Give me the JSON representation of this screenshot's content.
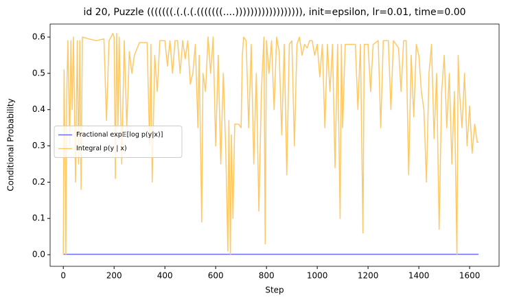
{
  "chart_data": {
    "type": "line",
    "title": "id 20, Puzzle (((((((.(.(.(.(((((((....)))))))))))))))))), init=epsilon, lr=0.01, time=0.00",
    "xlabel": "Step",
    "ylabel": "Conditional Probability",
    "xlim": [
      -52,
      1716
    ],
    "ylim": [
      -0.032,
      0.636
    ],
    "xticks": [
      0,
      200,
      400,
      600,
      800,
      1000,
      1200,
      1400,
      1600
    ],
    "yticks": [
      {
        "value": 0,
        "label": "0.0"
      },
      0.1,
      0.2,
      0.3,
      0.4,
      0.5,
      0.6
    ],
    "legend": "center left",
    "series": [
      {
        "name": "Fractional exp𝔼[log p(y|x)]",
        "color": "#6b6bf5",
        "x": [
          0,
          1635
        ],
        "values": [
          0.001,
          0.001
        ]
      },
      {
        "name": "Integral p(y | x)",
        "color": "#fec864",
        "x": [
          0,
          3,
          8,
          10,
          14,
          18,
          25,
          30,
          35,
          40,
          48,
          55,
          60,
          65,
          70,
          75,
          100,
          130,
          160,
          170,
          180,
          195,
          200,
          205,
          210,
          215,
          220,
          230,
          240,
          250,
          260,
          270,
          280,
          300,
          330,
          340,
          345,
          350,
          360,
          370,
          380,
          400,
          410,
          420,
          430,
          440,
          450,
          460,
          470,
          480,
          490,
          500,
          510,
          520,
          530,
          535,
          545,
          550,
          560,
          570,
          580,
          590,
          600,
          610,
          620,
          630,
          640,
          648,
          652,
          658,
          662,
          668,
          675,
          690,
          700,
          705,
          710,
          720,
          730,
          740,
          750,
          760,
          770,
          780,
          790,
          795,
          800,
          810,
          820,
          830,
          840,
          850,
          860,
          870,
          880,
          890,
          900,
          910,
          920,
          930,
          940,
          950,
          960,
          970,
          980,
          990,
          1000,
          1010,
          1020,
          1030,
          1040,
          1050,
          1060,
          1070,
          1080,
          1090,
          1095,
          1100,
          1110,
          1130,
          1150,
          1160,
          1170,
          1180,
          1185,
          1200,
          1210,
          1220,
          1240,
          1250,
          1260,
          1280,
          1290,
          1300,
          1320,
          1330,
          1340,
          1350,
          1360,
          1370,
          1380,
          1390,
          1400,
          1410,
          1420,
          1430,
          1440,
          1450,
          1460,
          1470,
          1480,
          1490,
          1500,
          1510,
          1520,
          1530,
          1540,
          1550,
          1555,
          1560,
          1570,
          1580,
          1590,
          1600,
          1610,
          1620,
          1630,
          1635
        ],
        "values": [
          0.0,
          0.51,
          0.17,
          0.0,
          0.46,
          0.59,
          0.3,
          0.59,
          0.4,
          0.6,
          0.2,
          0.59,
          0.25,
          0.59,
          0.18,
          0.6,
          0.595,
          0.59,
          0.595,
          0.37,
          0.59,
          0.61,
          0.6,
          0.21,
          0.61,
          0.35,
          0.6,
          0.25,
          0.59,
          0.35,
          0.56,
          0.5,
          0.55,
          0.585,
          0.585,
          0.3,
          0.58,
          0.2,
          0.55,
          0.45,
          0.59,
          0.59,
          0.52,
          0.59,
          0.5,
          0.59,
          0.59,
          0.5,
          0.59,
          0.54,
          0.59,
          0.47,
          0.5,
          0.58,
          0.35,
          0.55,
          0.09,
          0.5,
          0.45,
          0.6,
          0.5,
          0.6,
          0.3,
          0.55,
          0.25,
          0.5,
          0.28,
          0.01,
          0.37,
          0.0,
          0.33,
          0.1,
          0.36,
          0.36,
          0.35,
          0.55,
          0.6,
          0.59,
          0.35,
          0.58,
          0.25,
          0.5,
          0.12,
          0.45,
          0.6,
          0.03,
          0.59,
          0.5,
          0.59,
          0.4,
          0.6,
          0.56,
          0.33,
          0.58,
          0.22,
          0.58,
          0.59,
          0.3,
          0.58,
          0.6,
          0.55,
          0.58,
          0.57,
          0.59,
          0.59,
          0.55,
          0.58,
          0.49,
          0.58,
          0.35,
          0.58,
          0.45,
          0.58,
          0.24,
          0.58,
          0.1,
          0.58,
          0.35,
          0.58,
          0.58,
          0.58,
          0.4,
          0.58,
          0.06,
          0.58,
          0.58,
          0.45,
          0.58,
          0.59,
          0.35,
          0.59,
          0.59,
          0.4,
          0.59,
          0.57,
          0.45,
          0.59,
          0.59,
          0.22,
          0.55,
          0.38,
          0.58,
          0.55,
          0.45,
          0.4,
          0.2,
          0.5,
          0.58,
          0.32,
          0.5,
          0.07,
          0.45,
          0.55,
          0.35,
          0.5,
          0.25,
          0.45,
          0.0,
          0.55,
          0.45,
          0.35,
          0.5,
          0.3,
          0.41,
          0.28,
          0.36,
          0.31,
          0.31
        ]
      }
    ]
  }
}
